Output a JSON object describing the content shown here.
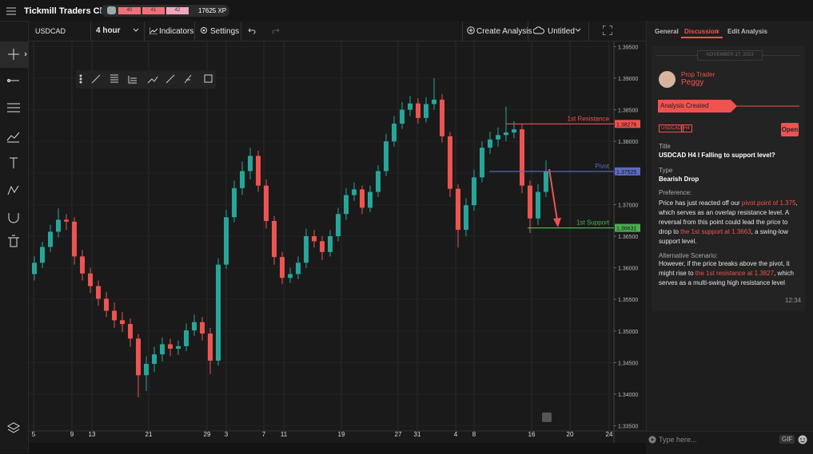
{
  "header": {
    "title": "Tickmill Traders Club",
    "levels": [
      "40",
      "41",
      "42"
    ],
    "xp": "17625 XP"
  },
  "toolbar": {
    "symbol": "USDCAD",
    "interval": "4 hour",
    "indicators": "Indicators",
    "settings": "Settings",
    "create": "Create Analysis",
    "name": "Untitled"
  },
  "chart_data": {
    "type": "candlestick",
    "grid": true,
    "up_color": "#26a69a",
    "down_color": "#ef5350",
    "xlim": [
      0,
      73
    ],
    "xticks": [
      {
        "value": 0.4,
        "label": "5"
      },
      {
        "value": 5.2,
        "label": "9"
      },
      {
        "value": 7.7,
        "label": "13"
      },
      {
        "value": 14.8,
        "label": "21"
      },
      {
        "value": 22.1,
        "label": "29"
      },
      {
        "value": 24.5,
        "label": "3"
      },
      {
        "value": 29.2,
        "label": "7"
      },
      {
        "value": 31.7,
        "label": "11"
      },
      {
        "value": 38.9,
        "label": "19"
      },
      {
        "value": 46,
        "label": "27"
      },
      {
        "value": 48.4,
        "label": "31"
      },
      {
        "value": 53.2,
        "label": "4"
      },
      {
        "value": 55.5,
        "label": "8"
      },
      {
        "value": 62.7,
        "label": "16"
      },
      {
        "value": 67.5,
        "label": "20"
      },
      {
        "value": 72.4,
        "label": "24"
      }
    ],
    "ylim": [
      1.3342,
      1.3958
    ],
    "yticks": [
      {
        "value": 1.335,
        "label": "1.33500"
      },
      {
        "value": 1.34,
        "label": "1.34000"
      },
      {
        "value": 1.345,
        "label": "1.34500"
      },
      {
        "value": 1.35,
        "label": "1.35000"
      },
      {
        "value": 1.355,
        "label": "1.35500"
      },
      {
        "value": 1.36,
        "label": "1.36000"
      },
      {
        "value": 1.365,
        "label": "1.36500"
      },
      {
        "value": 1.37,
        "label": "1.37000"
      },
      {
        "value": 1.375,
        "label": "1.37500"
      },
      {
        "value": 1.38,
        "label": "1.38000"
      },
      {
        "value": 1.385,
        "label": "1.38500"
      },
      {
        "value": 1.39,
        "label": "1.39000"
      },
      {
        "value": 1.395,
        "label": "1.39500"
      }
    ],
    "open": [
      1.359,
      1.3608,
      1.3633,
      1.3657,
      1.3676,
      1.3673,
      1.3618,
      1.3591,
      1.3571,
      1.3551,
      1.3532,
      1.3517,
      1.3511,
      1.3488,
      1.343,
      1.3448,
      1.3463,
      1.3479,
      1.3472,
      1.3476,
      1.3501,
      1.3514,
      1.3496,
      1.3453,
      1.3605,
      1.368,
      1.3726,
      1.3753,
      1.3777,
      1.373,
      1.3674,
      1.3617,
      1.3584,
      1.359,
      1.3608,
      1.365,
      1.3642,
      1.3625,
      1.365,
      1.3685,
      1.3715,
      1.3724,
      1.3695,
      1.372,
      1.3753,
      1.38,
      1.3828,
      1.385,
      1.386,
      1.3837,
      1.3859,
      1.3866,
      1.3808,
      1.3725,
      1.366,
      1.3699,
      1.3743,
      1.379,
      1.3803,
      1.381,
      1.3814,
      1.3819,
      1.373,
      1.3678,
      1.372
    ],
    "high": [
      1.3618,
      1.3641,
      1.3668,
      1.3694,
      1.3685,
      1.368,
      1.3628,
      1.36,
      1.358,
      1.3562,
      1.3545,
      1.353,
      1.352,
      1.3495,
      1.346,
      1.3475,
      1.349,
      1.3488,
      1.3485,
      1.3512,
      1.3526,
      1.3522,
      1.3505,
      1.3615,
      1.3692,
      1.3738,
      1.3768,
      1.379,
      1.3785,
      1.374,
      1.3682,
      1.3625,
      1.36,
      1.3618,
      1.3662,
      1.366,
      1.365,
      1.366,
      1.3695,
      1.3726,
      1.3735,
      1.373,
      1.373,
      1.3762,
      1.3812,
      1.384,
      1.3862,
      1.3872,
      1.3868,
      1.387,
      1.39,
      1.3875,
      1.3815,
      1.3732,
      1.371,
      1.3755,
      1.38,
      1.3815,
      1.3822,
      1.3855,
      1.3832,
      1.3828,
      1.3738,
      1.3732,
      1.377
    ],
    "low": [
      1.358,
      1.36,
      1.3625,
      1.3648,
      1.366,
      1.3605,
      1.358,
      1.356,
      1.354,
      1.3522,
      1.3505,
      1.3498,
      1.3475,
      1.3395,
      1.3405,
      1.3435,
      1.3452,
      1.346,
      1.3462,
      1.3468,
      1.3492,
      1.3485,
      1.3432,
      1.3445,
      1.3598,
      1.3672,
      1.3715,
      1.374,
      1.372,
      1.3662,
      1.3605,
      1.3574,
      1.3576,
      1.3582,
      1.36,
      1.3632,
      1.3612,
      1.3618,
      1.3642,
      1.3676,
      1.3706,
      1.3685,
      1.3688,
      1.3712,
      1.3745,
      1.3792,
      1.382,
      1.384,
      1.3828,
      1.383,
      1.385,
      1.3798,
      1.3712,
      1.3632,
      1.365,
      1.369,
      1.3735,
      1.378,
      1.3792,
      1.38,
      1.3805,
      1.3718,
      1.3655,
      1.3668,
      1.3712
    ],
    "close": [
      1.3608,
      1.3633,
      1.3657,
      1.3676,
      1.3673,
      1.3618,
      1.3591,
      1.3571,
      1.3551,
      1.3532,
      1.3517,
      1.3511,
      1.3488,
      1.343,
      1.3448,
      1.3463,
      1.3479,
      1.3472,
      1.3476,
      1.3501,
      1.3514,
      1.3496,
      1.3453,
      1.3605,
      1.368,
      1.3726,
      1.3753,
      1.3777,
      1.373,
      1.3674,
      1.3617,
      1.3584,
      1.359,
      1.3608,
      1.365,
      1.3642,
      1.3625,
      1.365,
      1.3685,
      1.3715,
      1.3724,
      1.3695,
      1.372,
      1.3753,
      1.38,
      1.3828,
      1.385,
      1.386,
      1.3837,
      1.3859,
      1.3866,
      1.3808,
      1.3725,
      1.366,
      1.3699,
      1.3743,
      1.379,
      1.3803,
      1.381,
      1.3814,
      1.3819,
      1.373,
      1.3678,
      1.372,
      1.3752
    ],
    "levels": [
      {
        "name": "1st Resistance",
        "value": 1.38276,
        "color": "#ef5350"
      },
      {
        "name": "Pivot",
        "value": 1.37525,
        "color": "#5c6bc0"
      },
      {
        "name": "1st Support",
        "value": 1.36631,
        "color": "#4caf50"
      }
    ]
  },
  "panel": {
    "tabs": [
      "General",
      "Discussion",
      "Edit Analysis"
    ],
    "date": "NOVEMBER 17, 2023",
    "role": "Prop Trader",
    "user": "Peggy",
    "event": "Analysis Created",
    "tags": [
      "USDCAD",
      "H4"
    ],
    "open": "Open",
    "title_label": "Title",
    "title": "USDCAD H4 I Falling to support level?",
    "type_label": "Type",
    "type": "Bearish Drop",
    "preference_label": "Preference:",
    "preference": [
      {
        "text": "Price has just reacted off our "
      },
      {
        "text": "pivot point of 1.375",
        "highlight": true
      },
      {
        "text": ", which serves as an overlap resistance level. A reversal from this point could lead the price to drop to "
      },
      {
        "text": "the 1st support at 1.3663",
        "highlight": true
      },
      {
        "text": ", a swing-low support level."
      }
    ],
    "alternative_label": "Alternative Scenario:",
    "alternative": [
      {
        "text": "However, if the price breaks above the pivot, it might rise to "
      },
      {
        "text": "the 1st resistance at 1.3827",
        "highlight": true
      },
      {
        "text": ", which serves as a multi-swing high resistance level"
      }
    ],
    "time": "12:34",
    "input": "Type here...",
    "gif": "GIF"
  }
}
